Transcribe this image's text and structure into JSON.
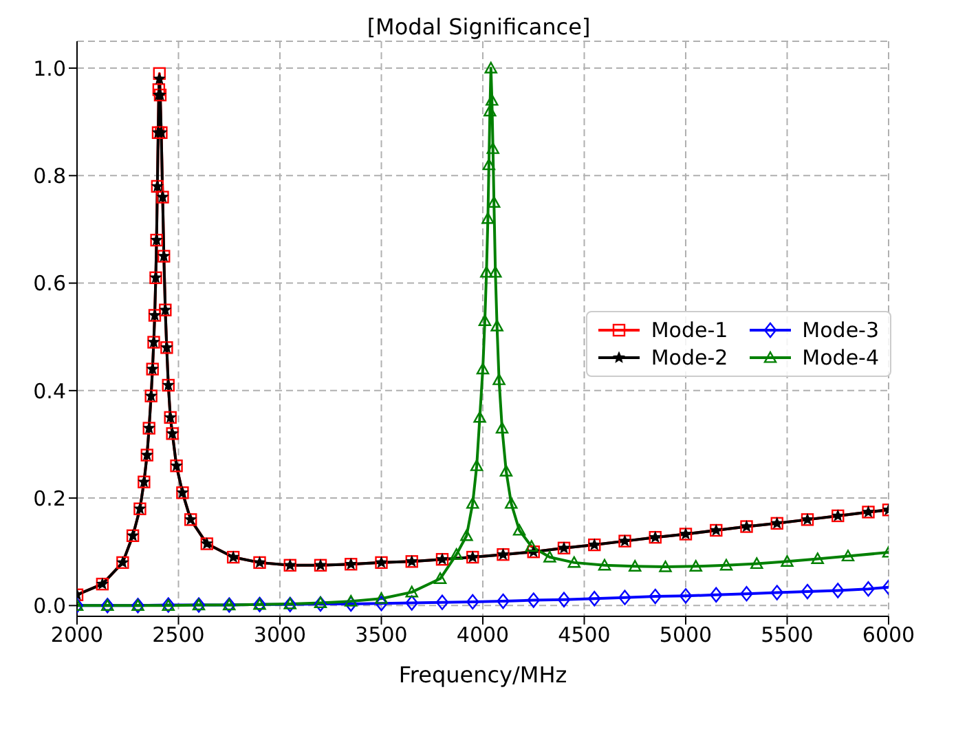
{
  "chart_data": {
    "type": "line",
    "title": "[Modal Significance]",
    "xlabel": "Frequency/MHz",
    "xlim": [
      2000,
      6000
    ],
    "xticks": [
      2000,
      2500,
      3000,
      3500,
      4000,
      4500,
      5000,
      5500,
      6000
    ],
    "ylim": [
      -0.02,
      1.05
    ],
    "yticks": [
      {
        "value": 0,
        "label": "0.0"
      },
      {
        "value": 0.2,
        "label": "0.2"
      },
      {
        "value": 0.4,
        "label": "0.4"
      },
      {
        "value": 0.6,
        "label": "0.6"
      },
      {
        "value": 0.8,
        "label": "0.8"
      },
      {
        "value": 1,
        "label": "1.0"
      }
    ],
    "grid": true,
    "legend": "right",
    "line_style": "solid",
    "series": [
      {
        "name": "Mode-1",
        "color": "#ff0000",
        "marker": "square",
        "x": [
          2000,
          2125,
          2225,
          2275,
          2310,
          2330,
          2345,
          2355,
          2365,
          2372,
          2378,
          2383,
          2388,
          2392,
          2396,
          2400,
          2403,
          2406,
          2410,
          2415,
          2422,
          2428,
          2435,
          2442,
          2450,
          2460,
          2470,
          2490,
          2520,
          2560,
          2640,
          2770,
          2900,
          3050,
          3200,
          3350,
          3500,
          3650,
          3800,
          3950,
          4100,
          4250,
          4400,
          4550,
          4700,
          4850,
          5000,
          5150,
          5300,
          5450,
          5600,
          5750,
          5900,
          6000
        ],
        "values": [
          0.02,
          0.04,
          0.08,
          0.13,
          0.18,
          0.23,
          0.28,
          0.33,
          0.39,
          0.44,
          0.49,
          0.54,
          0.61,
          0.68,
          0.78,
          0.88,
          0.96,
          0.99,
          0.95,
          0.88,
          0.76,
          0.65,
          0.55,
          0.48,
          0.41,
          0.35,
          0.32,
          0.26,
          0.21,
          0.16,
          0.115,
          0.09,
          0.08,
          0.075,
          0.075,
          0.077,
          0.08,
          0.082,
          0.086,
          0.09,
          0.095,
          0.1,
          0.107,
          0.113,
          0.12,
          0.127,
          0.133,
          0.14,
          0.147,
          0.153,
          0.16,
          0.167,
          0.174,
          0.178
        ]
      },
      {
        "name": "Mode-2",
        "color": "#000000",
        "marker": "star",
        "x": [
          2000,
          2125,
          2225,
          2275,
          2310,
          2330,
          2345,
          2355,
          2365,
          2372,
          2378,
          2383,
          2388,
          2392,
          2396,
          2400,
          2403,
          2406,
          2410,
          2415,
          2422,
          2428,
          2435,
          2442,
          2450,
          2460,
          2470,
          2490,
          2520,
          2560,
          2640,
          2770,
          2900,
          3050,
          3200,
          3350,
          3500,
          3650,
          3800,
          3950,
          4100,
          4250,
          4400,
          4550,
          4700,
          4850,
          5000,
          5150,
          5300,
          5450,
          5600,
          5750,
          5900,
          6000
        ],
        "values": [
          0.02,
          0.04,
          0.08,
          0.13,
          0.18,
          0.23,
          0.28,
          0.33,
          0.39,
          0.44,
          0.49,
          0.54,
          0.61,
          0.68,
          0.78,
          0.88,
          0.95,
          0.98,
          0.95,
          0.88,
          0.76,
          0.65,
          0.55,
          0.48,
          0.41,
          0.35,
          0.32,
          0.26,
          0.21,
          0.16,
          0.115,
          0.09,
          0.08,
          0.075,
          0.075,
          0.077,
          0.08,
          0.082,
          0.086,
          0.09,
          0.095,
          0.1,
          0.107,
          0.113,
          0.12,
          0.127,
          0.133,
          0.14,
          0.147,
          0.153,
          0.16,
          0.167,
          0.174,
          0.178
        ]
      },
      {
        "name": "Mode-3",
        "color": "#0000ff",
        "marker": "diamond",
        "x": [
          2000,
          2150,
          2300,
          2450,
          2600,
          2750,
          2900,
          3050,
          3200,
          3350,
          3500,
          3650,
          3800,
          3950,
          4100,
          4250,
          4400,
          4550,
          4700,
          4850,
          5000,
          5150,
          5300,
          5450,
          5600,
          5750,
          5900,
          6000
        ],
        "values": [
          0.0,
          0.0,
          0.0,
          0.001,
          0.001,
          0.001,
          0.002,
          0.002,
          0.003,
          0.003,
          0.004,
          0.005,
          0.006,
          0.007,
          0.008,
          0.01,
          0.011,
          0.013,
          0.015,
          0.017,
          0.018,
          0.02,
          0.022,
          0.024,
          0.026,
          0.028,
          0.031,
          0.034
        ]
      },
      {
        "name": "Mode-4",
        "color": "#008000",
        "marker": "triangle",
        "x": [
          2000,
          2150,
          2300,
          2450,
          2600,
          2750,
          2900,
          3050,
          3200,
          3350,
          3500,
          3650,
          3790,
          3870,
          3920,
          3950,
          3970,
          3985,
          4000,
          4010,
          4018,
          4025,
          4030,
          4035,
          4040,
          4045,
          4050,
          4055,
          4062,
          4070,
          4080,
          4095,
          4115,
          4140,
          4180,
          4240,
          4330,
          4450,
          4600,
          4750,
          4900,
          5050,
          5200,
          5350,
          5500,
          5650,
          5800,
          6000
        ],
        "values": [
          0.0,
          0.0,
          0.0,
          0.0,
          0.001,
          0.001,
          0.002,
          0.003,
          0.005,
          0.008,
          0.013,
          0.025,
          0.05,
          0.095,
          0.13,
          0.19,
          0.26,
          0.35,
          0.44,
          0.53,
          0.62,
          0.72,
          0.82,
          0.92,
          1.0,
          0.94,
          0.85,
          0.75,
          0.62,
          0.52,
          0.42,
          0.33,
          0.25,
          0.19,
          0.14,
          0.11,
          0.09,
          0.08,
          0.075,
          0.073,
          0.072,
          0.073,
          0.075,
          0.078,
          0.082,
          0.087,
          0.092,
          0.099
        ]
      }
    ]
  }
}
